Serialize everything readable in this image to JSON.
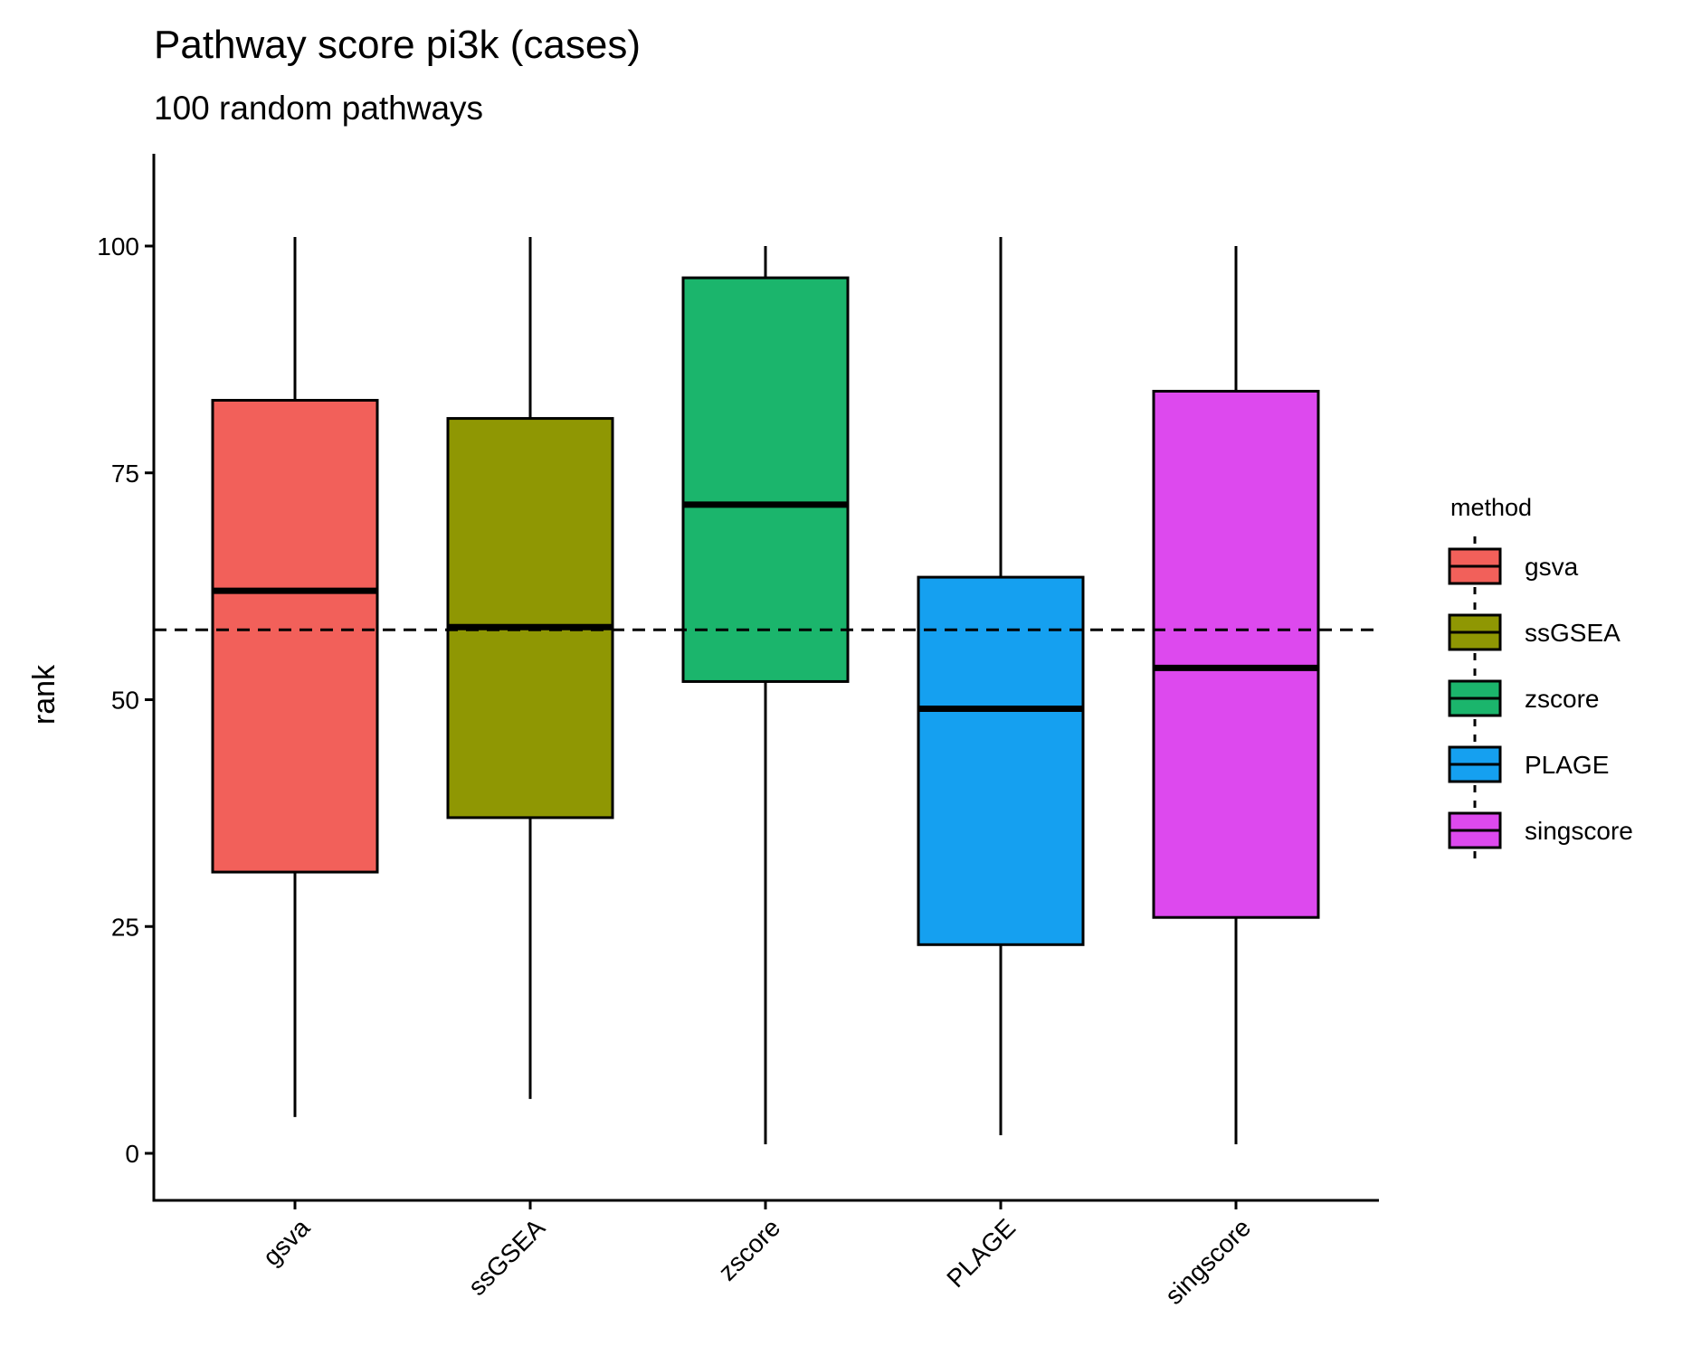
{
  "chart_data": {
    "type": "boxplot",
    "title": "Pathway score pi3k (cases)",
    "subtitle": "100 random pathways",
    "xlabel": "",
    "ylabel": "rank",
    "ylim": [
      -5,
      110
    ],
    "yticks": [
      0,
      25,
      50,
      75,
      100
    ],
    "reference_line": {
      "y": 57.7,
      "style": "dashed"
    },
    "grid": false,
    "legend": {
      "title": "method",
      "position": "right"
    },
    "categories": [
      "gsva",
      "ssGSEA",
      "zscore",
      "PLAGE",
      "singscore"
    ],
    "series": [
      {
        "name": "gsva",
        "color": "#F2605A",
        "min": 4,
        "q1": 31,
        "median": 62,
        "q3": 83,
        "max": 101
      },
      {
        "name": "ssGSEA",
        "color": "#8F9703",
        "min": 6,
        "q1": 37,
        "median": 58,
        "q3": 81,
        "max": 101
      },
      {
        "name": "zscore",
        "color": "#1BB56C",
        "min": 1,
        "q1": 52,
        "median": 71.5,
        "q3": 96.5,
        "max": 100
      },
      {
        "name": "PLAGE",
        "color": "#15A0F0",
        "min": 2,
        "q1": 23,
        "median": 49,
        "q3": 63.5,
        "max": 101
      },
      {
        "name": "singscore",
        "color": "#DD49EE",
        "min": 1,
        "q1": 26,
        "median": 53.5,
        "q3": 84,
        "max": 100
      }
    ]
  }
}
